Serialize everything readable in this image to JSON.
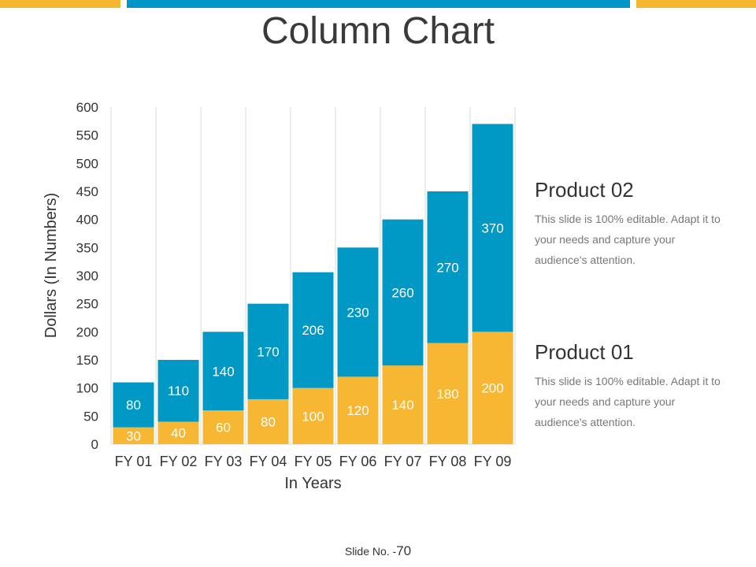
{
  "colors": {
    "bar_left": "#f5b730",
    "bar_mid": "#0096c7",
    "bar_right": "#f5b730",
    "product_02": "#0099c6",
    "product_01": "#f7b733",
    "grid": "#d9d9d9",
    "axis_text": "#333333",
    "label_text": "#ffffff"
  },
  "page": {
    "title": "Column Chart",
    "slide_label": "Slide No. -",
    "slide_number": "70"
  },
  "legend": {
    "product_02": {
      "title": "Product 02",
      "text": "This slide is 100% editable. Adapt it to your needs and capture your audience's attention."
    },
    "product_01": {
      "title": "Product 01",
      "text": "This slide is 100% editable. Adapt it to your needs and capture your audience's attention."
    }
  },
  "chart_data": {
    "type": "bar",
    "stacked": true,
    "title": "Column Chart",
    "xlabel": "In Years",
    "ylabel": "Dollars (In Numbers)",
    "ylim": [
      0,
      600
    ],
    "yticks": [
      0,
      50,
      100,
      150,
      200,
      250,
      300,
      350,
      400,
      450,
      500,
      550,
      600
    ],
    "grid": "vertical",
    "legend_position": "right",
    "categories": [
      "FY 01",
      "FY 02",
      "FY 03",
      "FY 04",
      "FY 05",
      "FY 06",
      "FY 07",
      "FY 08",
      "FY 09"
    ],
    "series": [
      {
        "name": "Product 01",
        "values": [
          30,
          40,
          60,
          80,
          100,
          120,
          140,
          180,
          200
        ]
      },
      {
        "name": "Product 02",
        "values": [
          80,
          110,
          140,
          170,
          206,
          230,
          260,
          270,
          370
        ]
      }
    ]
  }
}
